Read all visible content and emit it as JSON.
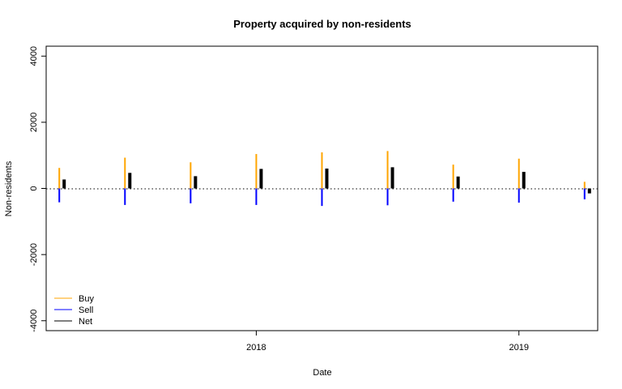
{
  "chart_data": {
    "type": "bar",
    "title": "Property acquired by non-residents",
    "xlabel": "Date",
    "ylabel": "Non-residents",
    "ylim": [
      -4300,
      4300
    ],
    "xlim": [
      2017.2,
      2019.3
    ],
    "yticks": [
      -4000,
      -2000,
      0,
      2000,
      4000
    ],
    "xticks": [
      {
        "value": 2018,
        "label": "2018"
      },
      {
        "value": 2019,
        "label": "2019"
      }
    ],
    "zero_line": "dotted",
    "grid": false,
    "legend_position": "bottom-left",
    "x": [
      2017.25,
      2017.5,
      2017.75,
      2018.0,
      2018.25,
      2018.5,
      2018.75,
      2019.0,
      2019.25
    ],
    "series": [
      {
        "name": "Buy",
        "color": "#FFA500",
        "values": [
          620,
          930,
          790,
          1040,
          1090,
          1130,
          720,
          900,
          200
        ]
      },
      {
        "name": "Sell",
        "color": "#0000FF",
        "values": [
          -420,
          -500,
          -450,
          -500,
          -530,
          -510,
          -400,
          -430,
          -330
        ]
      },
      {
        "name": "Net",
        "color": "#000000",
        "values": [
          270,
          470,
          370,
          590,
          600,
          640,
          360,
          500,
          -150
        ]
      }
    ]
  }
}
